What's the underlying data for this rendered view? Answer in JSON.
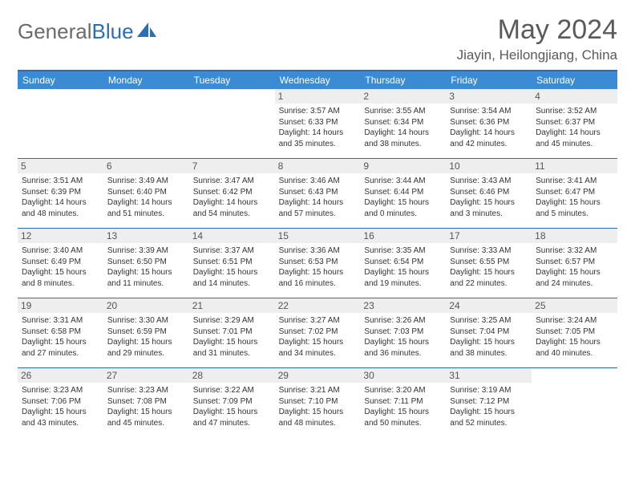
{
  "brand": {
    "part1": "General",
    "part2": "Blue"
  },
  "title": "May 2024",
  "location": "Jiayin, Heilongjiang, China",
  "colors": {
    "header_bar": "#3b8bd4",
    "border": "#2a6fb5",
    "daynum_bg": "#eeeeee",
    "text": "#333333",
    "title_text": "#5a5a5a"
  },
  "weekdays": [
    "Sunday",
    "Monday",
    "Tuesday",
    "Wednesday",
    "Thursday",
    "Friday",
    "Saturday"
  ],
  "weeks": [
    [
      {
        "n": "",
        "sr": "",
        "ss": "",
        "dl": ""
      },
      {
        "n": "",
        "sr": "",
        "ss": "",
        "dl": ""
      },
      {
        "n": "",
        "sr": "",
        "ss": "",
        "dl": ""
      },
      {
        "n": "1",
        "sr": "3:57 AM",
        "ss": "6:33 PM",
        "dl": "14 hours and 35 minutes."
      },
      {
        "n": "2",
        "sr": "3:55 AM",
        "ss": "6:34 PM",
        "dl": "14 hours and 38 minutes."
      },
      {
        "n": "3",
        "sr": "3:54 AM",
        "ss": "6:36 PM",
        "dl": "14 hours and 42 minutes."
      },
      {
        "n": "4",
        "sr": "3:52 AM",
        "ss": "6:37 PM",
        "dl": "14 hours and 45 minutes."
      }
    ],
    [
      {
        "n": "5",
        "sr": "3:51 AM",
        "ss": "6:39 PM",
        "dl": "14 hours and 48 minutes."
      },
      {
        "n": "6",
        "sr": "3:49 AM",
        "ss": "6:40 PM",
        "dl": "14 hours and 51 minutes."
      },
      {
        "n": "7",
        "sr": "3:47 AM",
        "ss": "6:42 PM",
        "dl": "14 hours and 54 minutes."
      },
      {
        "n": "8",
        "sr": "3:46 AM",
        "ss": "6:43 PM",
        "dl": "14 hours and 57 minutes."
      },
      {
        "n": "9",
        "sr": "3:44 AM",
        "ss": "6:44 PM",
        "dl": "15 hours and 0 minutes."
      },
      {
        "n": "10",
        "sr": "3:43 AM",
        "ss": "6:46 PM",
        "dl": "15 hours and 3 minutes."
      },
      {
        "n": "11",
        "sr": "3:41 AM",
        "ss": "6:47 PM",
        "dl": "15 hours and 5 minutes."
      }
    ],
    [
      {
        "n": "12",
        "sr": "3:40 AM",
        "ss": "6:49 PM",
        "dl": "15 hours and 8 minutes."
      },
      {
        "n": "13",
        "sr": "3:39 AM",
        "ss": "6:50 PM",
        "dl": "15 hours and 11 minutes."
      },
      {
        "n": "14",
        "sr": "3:37 AM",
        "ss": "6:51 PM",
        "dl": "15 hours and 14 minutes."
      },
      {
        "n": "15",
        "sr": "3:36 AM",
        "ss": "6:53 PM",
        "dl": "15 hours and 16 minutes."
      },
      {
        "n": "16",
        "sr": "3:35 AM",
        "ss": "6:54 PM",
        "dl": "15 hours and 19 minutes."
      },
      {
        "n": "17",
        "sr": "3:33 AM",
        "ss": "6:55 PM",
        "dl": "15 hours and 22 minutes."
      },
      {
        "n": "18",
        "sr": "3:32 AM",
        "ss": "6:57 PM",
        "dl": "15 hours and 24 minutes."
      }
    ],
    [
      {
        "n": "19",
        "sr": "3:31 AM",
        "ss": "6:58 PM",
        "dl": "15 hours and 27 minutes."
      },
      {
        "n": "20",
        "sr": "3:30 AM",
        "ss": "6:59 PM",
        "dl": "15 hours and 29 minutes."
      },
      {
        "n": "21",
        "sr": "3:29 AM",
        "ss": "7:01 PM",
        "dl": "15 hours and 31 minutes."
      },
      {
        "n": "22",
        "sr": "3:27 AM",
        "ss": "7:02 PM",
        "dl": "15 hours and 34 minutes."
      },
      {
        "n": "23",
        "sr": "3:26 AM",
        "ss": "7:03 PM",
        "dl": "15 hours and 36 minutes."
      },
      {
        "n": "24",
        "sr": "3:25 AM",
        "ss": "7:04 PM",
        "dl": "15 hours and 38 minutes."
      },
      {
        "n": "25",
        "sr": "3:24 AM",
        "ss": "7:05 PM",
        "dl": "15 hours and 40 minutes."
      }
    ],
    [
      {
        "n": "26",
        "sr": "3:23 AM",
        "ss": "7:06 PM",
        "dl": "15 hours and 43 minutes."
      },
      {
        "n": "27",
        "sr": "3:23 AM",
        "ss": "7:08 PM",
        "dl": "15 hours and 45 minutes."
      },
      {
        "n": "28",
        "sr": "3:22 AM",
        "ss": "7:09 PM",
        "dl": "15 hours and 47 minutes."
      },
      {
        "n": "29",
        "sr": "3:21 AM",
        "ss": "7:10 PM",
        "dl": "15 hours and 48 minutes."
      },
      {
        "n": "30",
        "sr": "3:20 AM",
        "ss": "7:11 PM",
        "dl": "15 hours and 50 minutes."
      },
      {
        "n": "31",
        "sr": "3:19 AM",
        "ss": "7:12 PM",
        "dl": "15 hours and 52 minutes."
      },
      {
        "n": "",
        "sr": "",
        "ss": "",
        "dl": ""
      }
    ]
  ],
  "labels": {
    "sunrise": "Sunrise:",
    "sunset": "Sunset:",
    "daylight": "Daylight:"
  }
}
